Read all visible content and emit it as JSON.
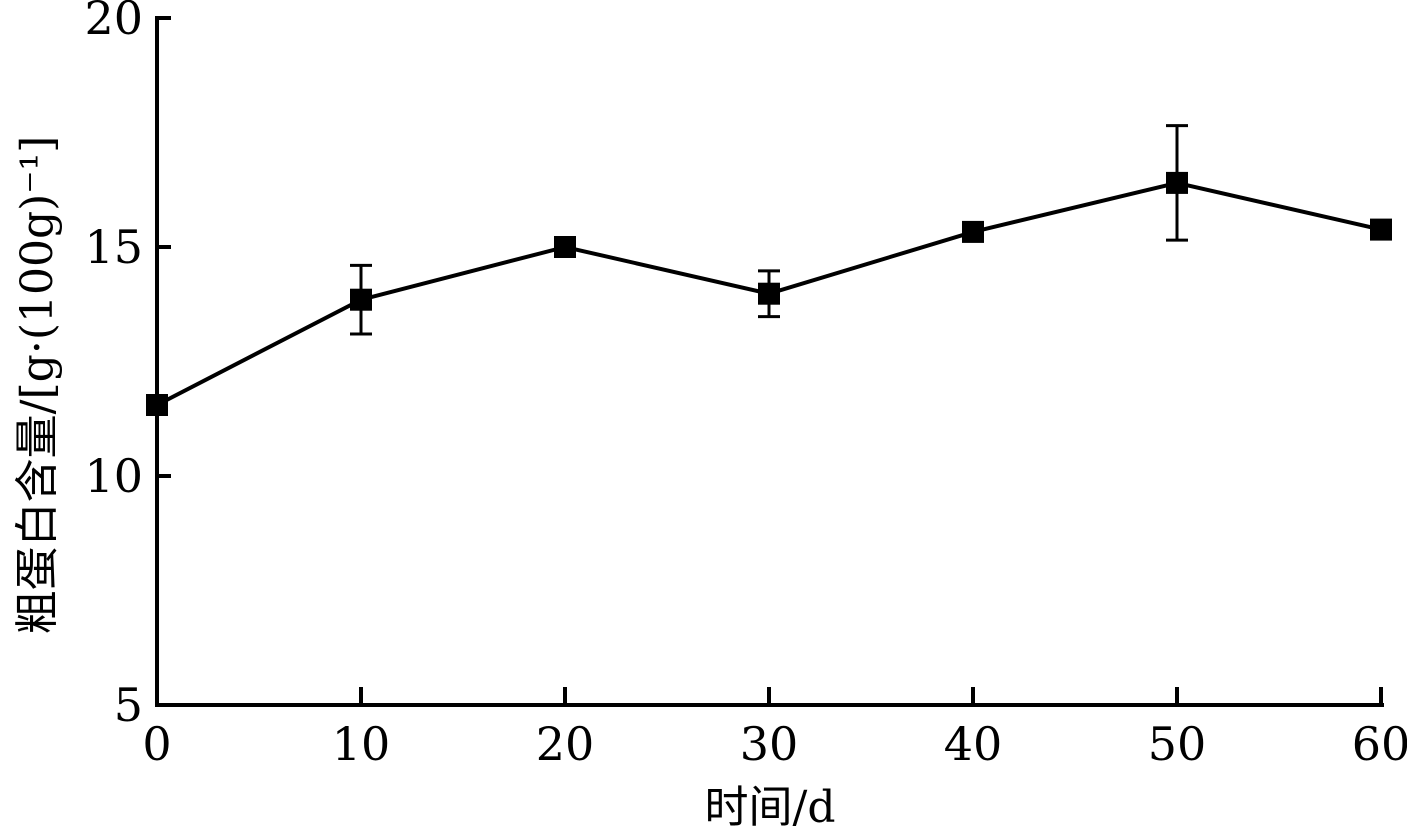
{
  "chart_data": {
    "type": "line",
    "xlabel": "时间/d",
    "ylabel": "粗蛋白含量/[g·(100g)⁻¹]",
    "xlim": [
      0,
      60
    ],
    "ylim": [
      5,
      20
    ],
    "xticks": [
      0,
      10,
      20,
      30,
      40,
      50,
      60
    ],
    "yticks": [
      5,
      10,
      15,
      20
    ],
    "xtick_labels": [
      "0",
      "10",
      "20",
      "30",
      "40",
      "50",
      "60"
    ],
    "ytick_labels": [
      "5",
      "10",
      "15",
      "20"
    ],
    "grid": false,
    "series": [
      {
        "x": [
          0,
          10,
          20,
          30,
          40,
          50,
          60
        ],
        "values": [
          11.55,
          13.85,
          15.0,
          13.98,
          15.33,
          16.4,
          15.38
        ],
        "error": [
          0.0,
          0.75,
          0.0,
          0.5,
          0.0,
          1.25,
          0.0
        ],
        "marker": "square",
        "color": "#000000"
      }
    ]
  }
}
